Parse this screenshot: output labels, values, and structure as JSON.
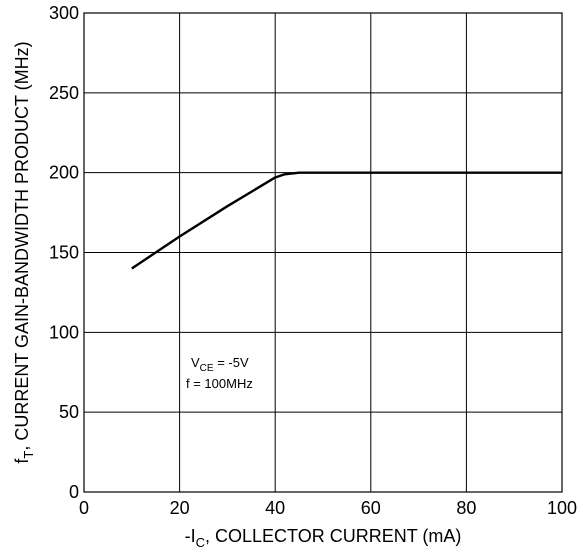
{
  "chart_data": {
    "type": "line",
    "xlim": [
      0,
      100
    ],
    "ylim": [
      0,
      300
    ],
    "xticks": [
      0,
      20,
      40,
      60,
      80,
      100
    ],
    "yticks": [
      0,
      50,
      100,
      150,
      200,
      250,
      300
    ],
    "xticklabels": [
      "0",
      "20",
      "40",
      "60",
      "80",
      "100"
    ],
    "yticklabels": [
      "0",
      "50",
      "100",
      "150",
      "200",
      "250",
      "300"
    ],
    "grid": true,
    "xlabel": {
      "pre": "-I",
      "sub": "C",
      "post": ", COLLECTOR CURRENT (mA)"
    },
    "ylabel": {
      "pre": "f",
      "sub": "T",
      "post": ", CURRENT GAIN-BANDWIDTH PRODUCT (MHz)"
    },
    "annotation": {
      "line1": {
        "pre": "V",
        "sub": "CE",
        "post": " = -5V"
      },
      "line2": "f = 100MHz"
    },
    "series": [
      {
        "color": "#000000",
        "x": [
          10,
          20,
          30,
          40,
          42,
          45,
          50,
          60,
          80,
          100
        ],
        "y": [
          140,
          160,
          179,
          197,
          199,
          200,
          200,
          200,
          200,
          200
        ]
      }
    ]
  }
}
